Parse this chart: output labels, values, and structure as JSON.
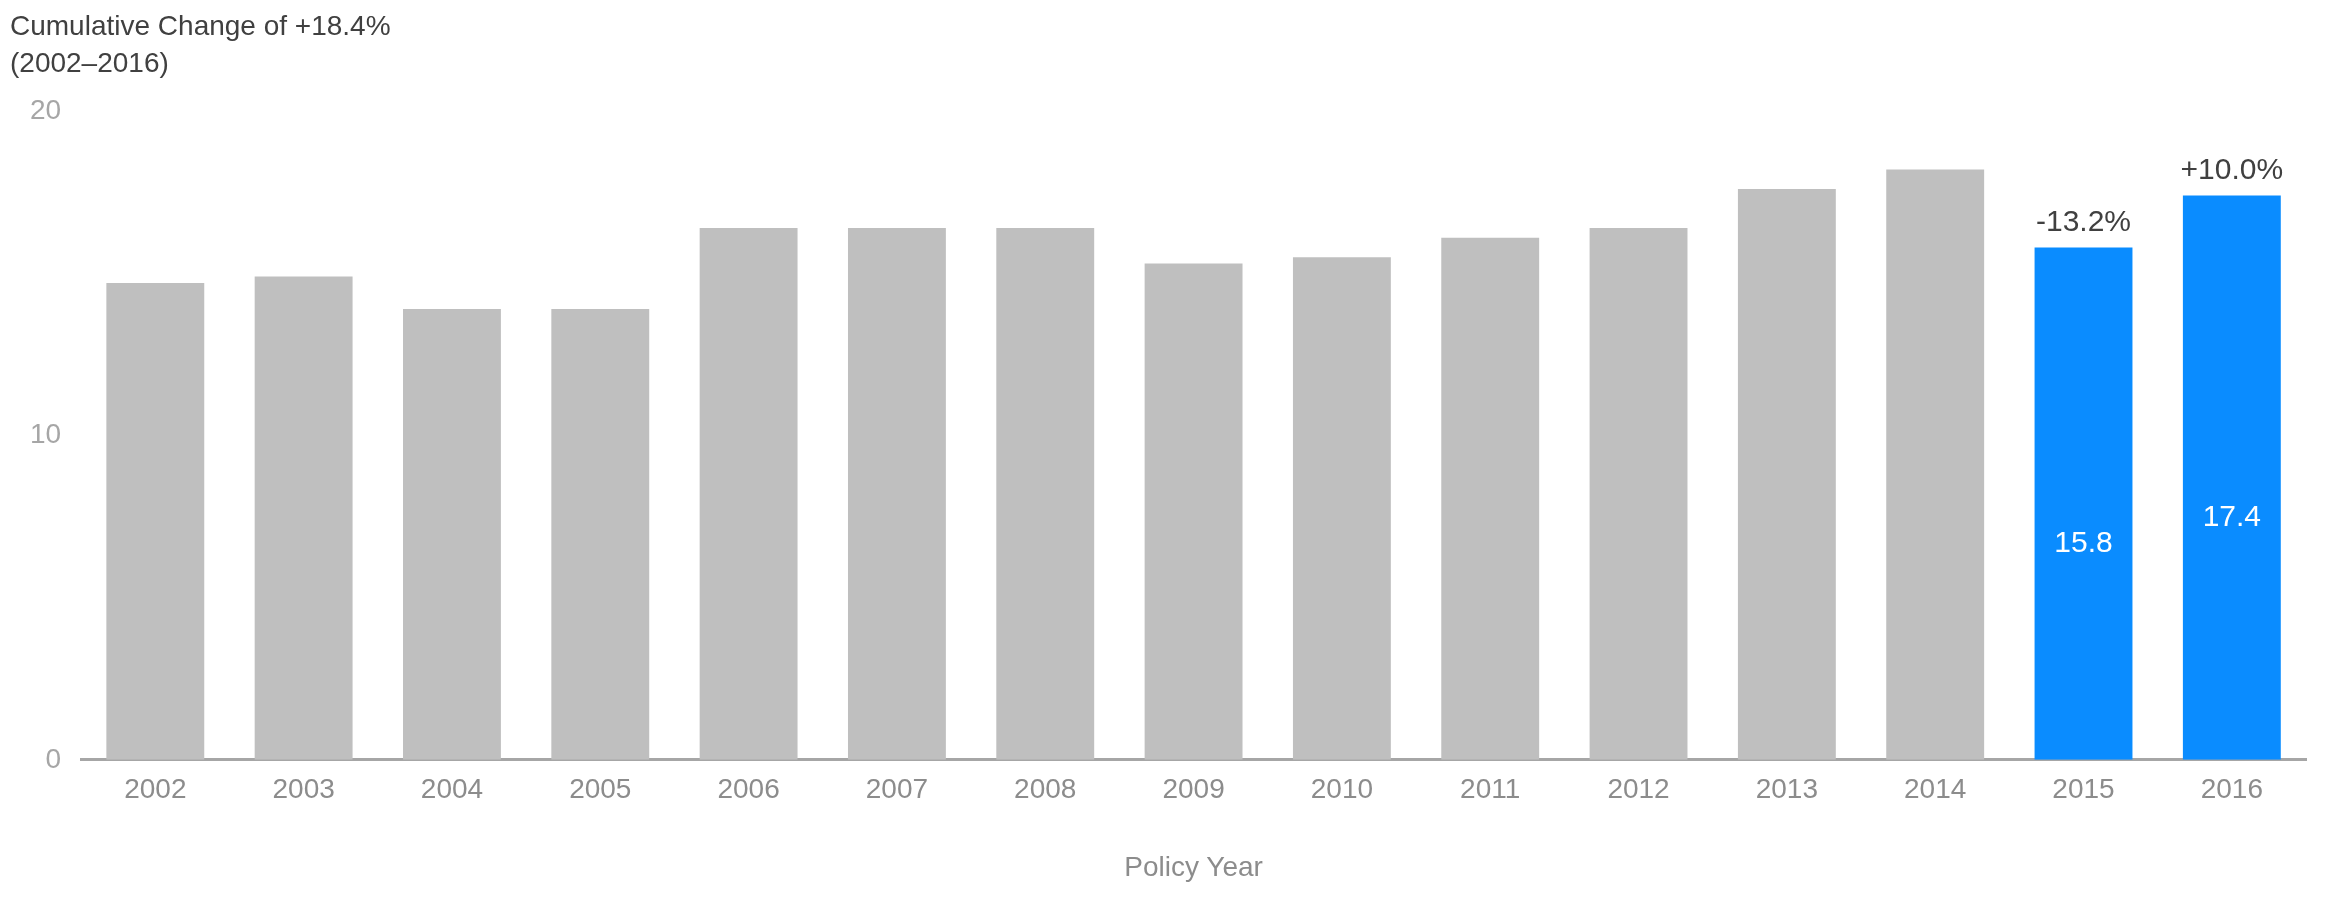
{
  "chart_data": {
    "type": "bar",
    "title": "Cumulative Change of +18.4%",
    "subtitle": "(2002–2016)",
    "xlabel": "Policy Year",
    "categories": [
      "2002",
      "2003",
      "2004",
      "2005",
      "2006",
      "2007",
      "2008",
      "2009",
      "2010",
      "2011",
      "2012",
      "2013",
      "2014",
      "2015",
      "2016"
    ],
    "values": [
      14.7,
      14.9,
      13.9,
      13.9,
      16.4,
      16.4,
      16.4,
      15.3,
      15.5,
      16.1,
      16.4,
      17.6,
      18.2,
      15.8,
      17.4
    ],
    "colors": [
      "#bfbfbf",
      "#bfbfbf",
      "#bfbfbf",
      "#bfbfbf",
      "#bfbfbf",
      "#bfbfbf",
      "#bfbfbf",
      "#bfbfbf",
      "#bfbfbf",
      "#bfbfbf",
      "#bfbfbf",
      "#bfbfbf",
      "#bfbfbf",
      "#0a8cff",
      "#0a8cff"
    ],
    "value_labels": [
      null,
      null,
      null,
      null,
      null,
      null,
      null,
      null,
      null,
      null,
      null,
      null,
      null,
      "15.8",
      "17.4"
    ],
    "annotations": [
      {
        "text": "-13.2%",
        "x": "2015",
        "y": 15.8
      },
      {
        "text": "+10.0%",
        "x": "2016",
        "y": 17.4
      }
    ],
    "ylim": [
      0,
      20
    ],
    "yticks": [
      0,
      10,
      20
    ],
    "grid": false,
    "legend": false
  }
}
